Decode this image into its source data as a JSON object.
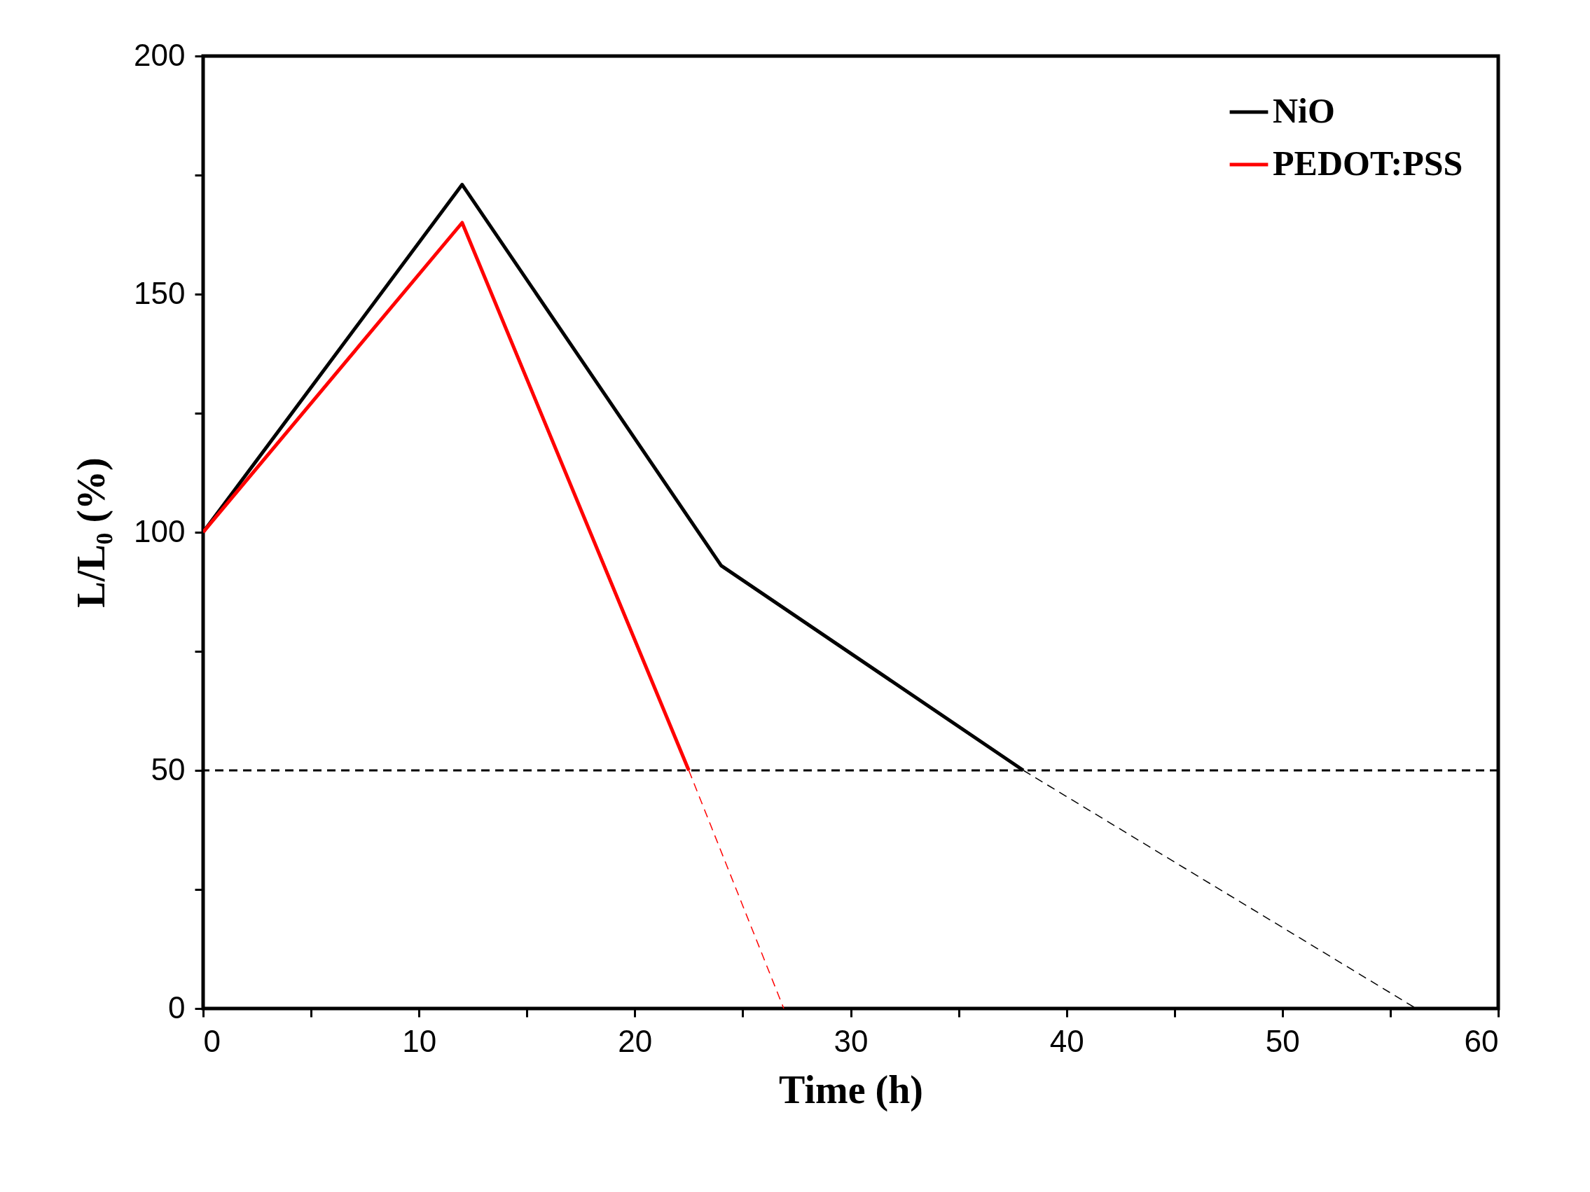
{
  "chart_data": {
    "type": "line",
    "xlabel": "Time (h)",
    "ylabel": "L/L₀ (%)",
    "xlim": [
      0,
      60
    ],
    "ylim": [
      0,
      200
    ],
    "xticks": [
      0,
      {
        "value": 5,
        "label": null
      },
      10,
      {
        "value": 15,
        "label": null
      },
      20,
      {
        "value": 25,
        "label": null
      },
      30,
      {
        "value": 35,
        "label": null
      },
      40,
      {
        "value": 45,
        "label": null
      },
      50,
      {
        "value": 55,
        "label": null
      },
      60
    ],
    "yticks": [
      0,
      {
        "value": 25,
        "label": null
      },
      50,
      {
        "value": 75,
        "label": null
      },
      100,
      {
        "value": 125,
        "label": null
      },
      150,
      {
        "value": 175,
        "label": null
      },
      200
    ],
    "grid": false,
    "legend": "top right",
    "marker": "none",
    "series": [
      {
        "name": "NiO",
        "color": "#000000",
        "line_style": "solid",
        "x": [
          0,
          12,
          24,
          38
        ],
        "values": [
          100,
          173,
          93,
          50
        ]
      },
      {
        "name": "PEDOT:PSS",
        "color": "#ff0000",
        "line_style": "solid",
        "x": [
          0,
          12,
          22.5
        ],
        "values": [
          100,
          165,
          50
        ]
      },
      {
        "color": "#000000",
        "line_style": "dashed",
        "x": [
          38,
          56.2
        ],
        "values": [
          50,
          0
        ]
      },
      {
        "color": "#ff0000",
        "line_style": "dashed",
        "x": [
          22.5,
          26.9
        ],
        "values": [
          50,
          0
        ]
      }
    ],
    "ref_lines": [
      {
        "axis": "y",
        "value": 50,
        "color": "#000000",
        "line_style": "dashed"
      }
    ]
  }
}
